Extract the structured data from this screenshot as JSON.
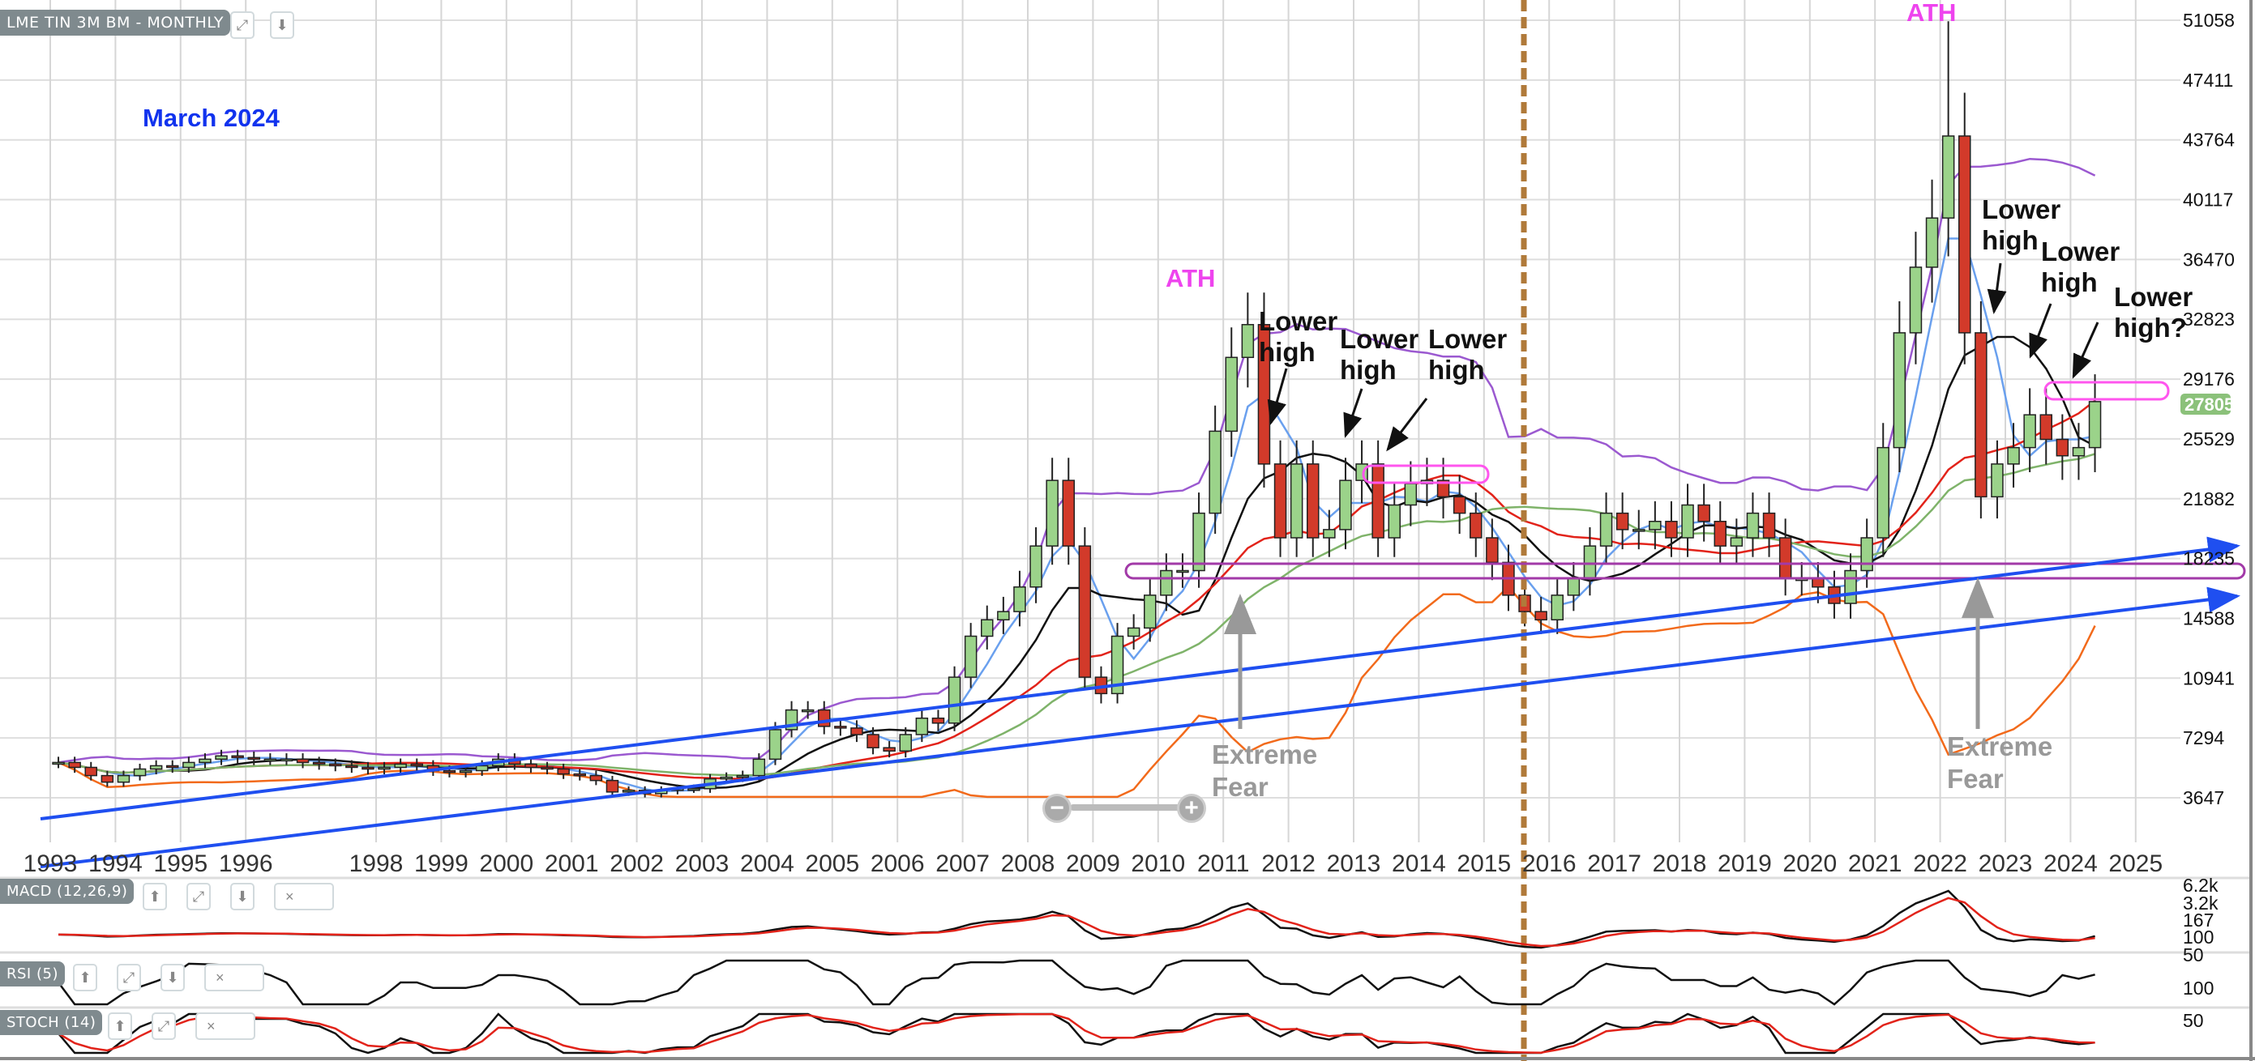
{
  "toolbar": {
    "chart_title": "LME TIN 3M BM - MONTHLY",
    "indicators": [
      {
        "label": "MACD (12,26,9)",
        "right_ticks": [
          "6.2k",
          "3.2k",
          "167"
        ]
      },
      {
        "label": "RSI (5)",
        "right_ticks": [
          "100",
          "50"
        ]
      },
      {
        "label": "STOCH (14)",
        "right_ticks": [
          "100",
          "50"
        ]
      }
    ],
    "close_icon": "×"
  },
  "chart_data": {
    "type": "candlestick",
    "title": "March 2024",
    "last_price": "27805",
    "y_ticks": [
      "51058",
      "47411",
      "43764",
      "40117",
      "36470",
      "32823",
      "29176",
      "25529",
      "21882",
      "18235",
      "14588",
      "10941",
      "7294",
      "3647"
    ],
    "ylim": [
      0,
      51058
    ],
    "x_ticks": [
      "1993",
      "1994",
      "1995",
      "1996",
      "1998",
      "1999",
      "2000",
      "2001",
      "2002",
      "2003",
      "2004",
      "2005",
      "2006",
      "2007",
      "2008",
      "2009",
      "2010",
      "2011",
      "2012",
      "2013",
      "2014",
      "2015",
      "2016",
      "2017",
      "2018",
      "2019",
      "2020",
      "2021",
      "2022",
      "2023",
      "2024",
      "2025"
    ],
    "xlim": [
      1992.7,
      2025.4
    ],
    "grid": true,
    "quarterly_close": [
      5800,
      5500,
      5000,
      4600,
      5000,
      5400,
      5600,
      5500,
      5800,
      6000,
      6200,
      6100,
      6000,
      6000,
      6000,
      5800,
      5700,
      5600,
      5500,
      5400,
      5500,
      5700,
      5600,
      5300,
      5200,
      5300,
      5600,
      6000,
      5700,
      5500,
      5400,
      5100,
      5000,
      4700,
      4000,
      4100,
      3900,
      4100,
      4200,
      4200,
      4800,
      4900,
      5000,
      6000,
      7800,
      9000,
      9000,
      8000,
      7900,
      7500,
      6700,
      6500,
      7500,
      8500,
      8200,
      11000,
      13500,
      14500,
      15000,
      16500,
      19000,
      23000,
      19000,
      11000,
      10000,
      13500,
      14000,
      16000,
      17500,
      17500,
      21000,
      26000,
      30500,
      32500,
      24000,
      19500,
      24000,
      19500,
      20000,
      23000,
      24000,
      19500,
      21500,
      22800,
      23000,
      22000,
      21000,
      19500,
      18000,
      16000,
      15000,
      14500,
      16000,
      17000,
      19000,
      21000,
      20000,
      20000,
      20500,
      19500,
      21500,
      20500,
      19000,
      19500,
      21000,
      19500,
      17000,
      17000,
      16500,
      15500,
      17500,
      19500,
      25000,
      32000,
      36000,
      39000,
      44000,
      32000,
      22000,
      24000,
      25000,
      27000,
      25500,
      24500,
      25000,
      27805
    ],
    "ath_high": 51000,
    "colors": {
      "up": "#9bd38a",
      "down": "#d23a2a",
      "trendline": "#1f4ff0",
      "support_band": "#a23aa8",
      "resistance_box": "#ff55ee",
      "divider": "#b07a3a",
      "last_price_tag": "#8bc17a"
    },
    "annotations": {
      "ath_2011": "ATH",
      "ath_2022": "ATH",
      "lower_high_1": [
        "Lower",
        "high"
      ],
      "lower_high_2": [
        "Lower",
        "high"
      ],
      "lower_high_3": [
        "Lower",
        "high"
      ],
      "lower_high_4": [
        "Lower",
        "high"
      ],
      "lower_high_5": [
        "Lower",
        "high"
      ],
      "lower_high_6": [
        "Lower",
        "high?"
      ],
      "extreme_fear_1": [
        "Extreme",
        "Fear"
      ],
      "extreme_fear_2": [
        "Extreme",
        "Fear"
      ]
    }
  },
  "zoom": {
    "minus": "−",
    "plus": "+"
  }
}
